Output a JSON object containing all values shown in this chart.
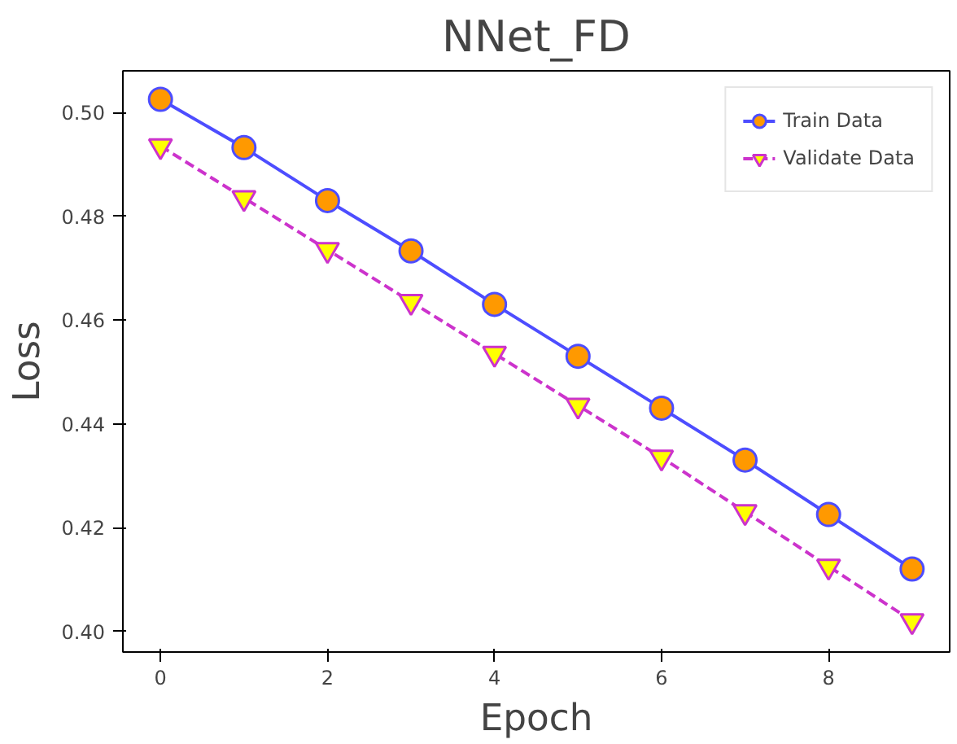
{
  "chart_data": {
    "type": "line",
    "title": "NNet_FD",
    "xlabel": "Epoch",
    "ylabel": "Loss",
    "x": [
      0,
      1,
      2,
      3,
      4,
      5,
      6,
      7,
      8,
      9
    ],
    "series": [
      {
        "name": "Train Data",
        "color": "#4d4dff",
        "marker": "circle",
        "line_style": "solid",
        "values": [
          0.5025,
          0.4932,
          0.483,
          0.4733,
          0.463,
          0.453,
          0.443,
          0.433,
          0.4225,
          0.412
        ]
      },
      {
        "name": "Validate Data",
        "color": "#cc33cc",
        "marker": "triangle",
        "line_style": "dashed",
        "values": [
          0.4935,
          0.4835,
          0.4735,
          0.4635,
          0.4535,
          0.4435,
          0.4335,
          0.423,
          0.4125,
          0.402
        ]
      }
    ],
    "xlim": [
      -0.45,
      9.45
    ],
    "xticks": [
      0,
      2,
      4,
      6,
      8
    ],
    "ylim": [
      0.396,
      0.508
    ],
    "yticks": [
      {
        "value": 0.4,
        "label": "0.40"
      },
      {
        "value": 0.42,
        "label": "0.42"
      },
      {
        "value": 0.44,
        "label": "0.44"
      },
      {
        "value": 0.46,
        "label": "0.46"
      },
      {
        "value": 0.48,
        "label": "0.48"
      },
      {
        "value": 0.5,
        "label": "0.50"
      }
    ],
    "grid": false,
    "legend": "top right"
  }
}
